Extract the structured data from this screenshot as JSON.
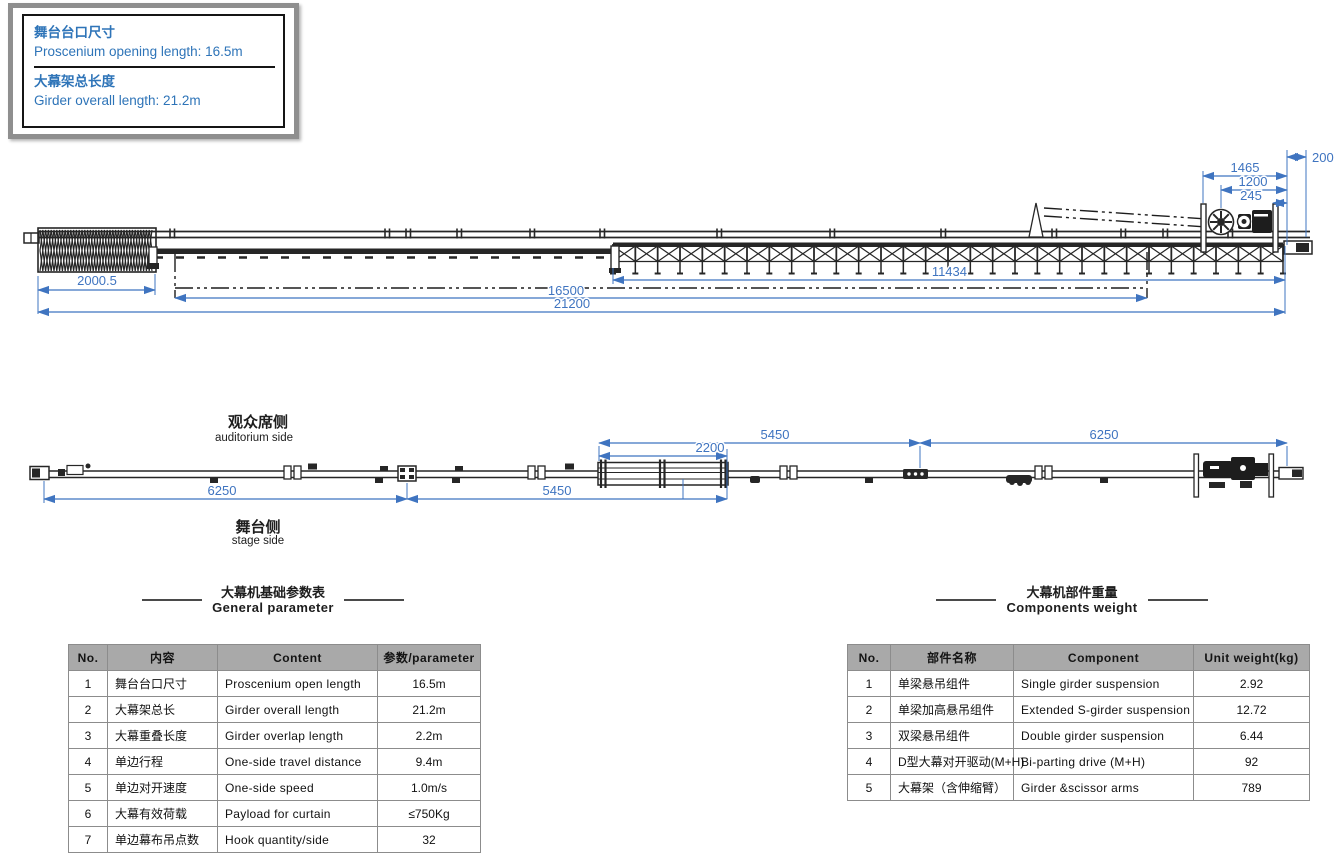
{
  "info_box": {
    "item1_zh": "舞台台口尺寸",
    "item1_en": "Proscenium opening length: 16.5m",
    "item2_zh": "大幕架总长度",
    "item2_en": "Girder overall length: 21.2m"
  },
  "front_view": {
    "dims": {
      "d200": "200",
      "d1465": "1465",
      "d1200": "1200",
      "d245": "245",
      "d2000_5": "2000.5",
      "d11434": "11434",
      "d16500": "16500",
      "d21200": "21200"
    }
  },
  "plan_view": {
    "labels": {
      "auditorium_zh": "观众席侧",
      "auditorium_en": "auditorium side",
      "stage_zh": "舞台侧",
      "stage_en": "stage side"
    },
    "dims": {
      "top_left": "5450",
      "top_right": "6250",
      "overlap": "2200",
      "bottom_left": "6250",
      "bottom_right": "5450"
    }
  },
  "general_table": {
    "title_zh": "大幕机基础参数表",
    "title_en": "General parameter",
    "headers": [
      "No.",
      "内容",
      "Content",
      "参数/parameter"
    ],
    "rows": [
      [
        "1",
        "舞台台口尺寸",
        "Proscenium open length",
        "16.5m"
      ],
      [
        "2",
        "大幕架总长",
        "Girder overall length",
        "21.2m"
      ],
      [
        "3",
        "大幕重叠长度",
        "Girder overlap length",
        "2.2m"
      ],
      [
        "4",
        "单边行程",
        "One-side travel distance",
        "9.4m"
      ],
      [
        "5",
        "单边对开速度",
        "One-side speed",
        "1.0m/s"
      ],
      [
        "6",
        "大幕有效荷载",
        "Payload for curtain",
        "≤750Kg"
      ],
      [
        "7",
        "单边幕布吊点数",
        "Hook quantity/side",
        "32"
      ]
    ]
  },
  "weight_table": {
    "title_zh": "大幕机部件重量",
    "title_en": "Components weight",
    "headers": [
      "No.",
      "部件名称",
      "Component",
      "Unit weight(kg)"
    ],
    "rows": [
      [
        "1",
        "单梁悬吊组件",
        "Single girder suspension",
        "2.92"
      ],
      [
        "2",
        "单梁加高悬吊组件",
        "Extended S-girder suspension",
        "12.72"
      ],
      [
        "3",
        "双梁悬吊组件",
        "Double girder suspension",
        "6.44"
      ],
      [
        "4",
        "D型大幕对开驱动(M+H)",
        "Bi-parting drive (M+H)",
        "92"
      ],
      [
        "5",
        "大幕架（含伸缩臂）",
        "Girder &scissor arms",
        "789"
      ]
    ]
  },
  "colors": {
    "dimension_blue": "#3f74c0",
    "info_blue": "#2e74b8",
    "line_dark": "#262626",
    "table_header_bg": "#a9a9a9"
  }
}
